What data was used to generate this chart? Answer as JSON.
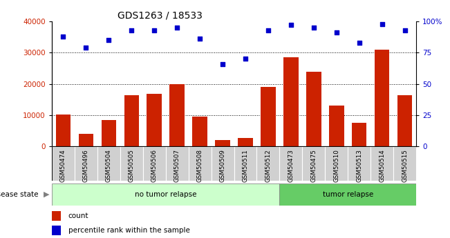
{
  "title": "GDS1263 / 18533",
  "categories": [
    "GSM50474",
    "GSM50496",
    "GSM50504",
    "GSM50505",
    "GSM50506",
    "GSM50507",
    "GSM50508",
    "GSM50509",
    "GSM50511",
    "GSM50512",
    "GSM50473",
    "GSM50475",
    "GSM50510",
    "GSM50513",
    "GSM50514",
    "GSM50515"
  ],
  "bar_values": [
    10200,
    4000,
    8400,
    16400,
    16800,
    20000,
    9500,
    2000,
    2700,
    19000,
    28500,
    24000,
    13000,
    7500,
    31000,
    16400
  ],
  "scatter_values": [
    88,
    79,
    85,
    93,
    93,
    95,
    86,
    66,
    70,
    93,
    97,
    95,
    91,
    83,
    98,
    93
  ],
  "bar_color": "#cc2200",
  "scatter_color": "#0000cc",
  "ylim_left": [
    0,
    40000
  ],
  "ylim_right": [
    0,
    100
  ],
  "yticks_left": [
    0,
    10000,
    20000,
    30000,
    40000
  ],
  "yticks_right": [
    0,
    25,
    50,
    75,
    100
  ],
  "ytick_labels_right": [
    "0",
    "25",
    "50",
    "75",
    "100%"
  ],
  "group1_label": "no tumor relapse",
  "group2_label": "tumor relapse",
  "group1_count": 10,
  "group2_count": 6,
  "disease_state_label": "disease state",
  "legend_bar_label": "count",
  "legend_scatter_label": "percentile rank within the sample",
  "tick_area_color": "#d0d0d0",
  "group1_color": "#ccffcc",
  "group2_color": "#66cc66",
  "title_fontsize": 10,
  "axis_fontsize": 7.5,
  "label_fontsize": 7.5
}
